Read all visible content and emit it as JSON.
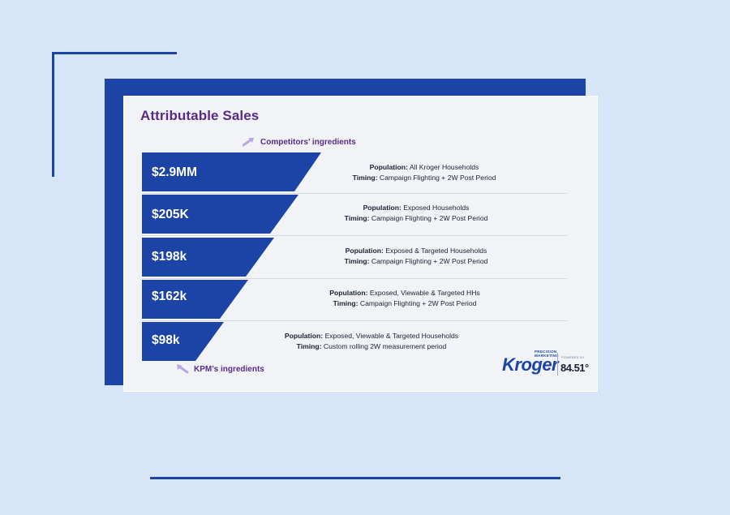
{
  "title": "Attributable Sales",
  "annotation_top": "Competitors’ ingredients",
  "annotation_bottom": "KPM’s ingredients",
  "colors": {
    "funnel_blue": "#1c44a6",
    "title_purple": "#5a2a88",
    "background": "#d7e5f9",
    "card": "#f1f3f7"
  },
  "rows": [
    {
      "value": "$2.9MM",
      "population_label": "Population:",
      "population": "All Kroger Households",
      "timing_label": "Timing:",
      "timing": "Campaign Flighting + 2W Post Period"
    },
    {
      "value": "$205K",
      "population_label": "Population:",
      "population": "Exposed Households",
      "timing_label": "Timing:",
      "timing": "Campaign Flighting + 2W Post Period"
    },
    {
      "value": "$198k",
      "population_label": "Population:",
      "population": "Exposed & Targeted Households",
      "timing_label": "Timing:",
      "timing": "Campaign Flighting + 2W Post Period"
    },
    {
      "value": "$162k",
      "population_label": "Population:",
      "population": "Exposed, Viewable & Targeted HHs",
      "timing_label": "Timing:",
      "timing": "Campaign Flighting + 2W Post Period"
    },
    {
      "value": "$98k",
      "population_label": "Population:",
      "population": "Exposed, Viewable & Targeted Households",
      "timing_label": "Timing:",
      "timing": "Custom rolling 2W measurement period"
    }
  ],
  "logo": {
    "brand": "Kroger",
    "tagline_line1": "PRECISION",
    "tagline_line2": "MARKETING",
    "powered_by": "POWERED BY",
    "partner": "84.51°"
  }
}
